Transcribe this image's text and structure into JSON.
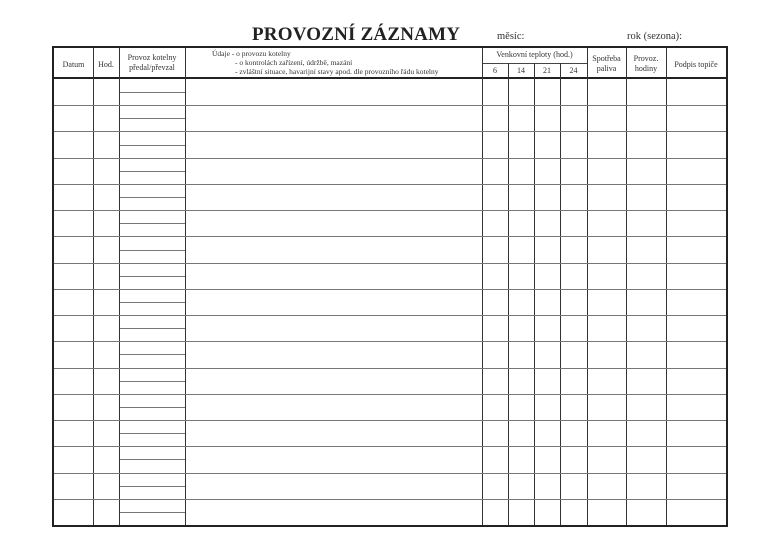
{
  "title": "PROVOZNÍ ZÁZNAMY",
  "month_label": "měsíc:",
  "year_label": "rok (sezona):",
  "columns": {
    "date": "Datum",
    "hour": "Hod.",
    "handover_line1": "Provoz kotelny",
    "handover_line2": "předal/převzal",
    "notes_line1": "Údaje  - o provozu kotelny",
    "notes_line2": "- o kontrolách zařízení, údržbě, mazání",
    "notes_line3": "- zvláštní situace, havarijní stavy apod. dle provozního řádu kotelny",
    "temps": "Venkovní teploty (hod.)",
    "temp_hours": [
      "6",
      "14",
      "21",
      "24"
    ],
    "fuel_line1": "Spotřeba",
    "fuel_line2": "paliva",
    "hours_line1": "Provoz.",
    "hours_line2": "hodiny",
    "signature": "Podpis topiče"
  }
}
